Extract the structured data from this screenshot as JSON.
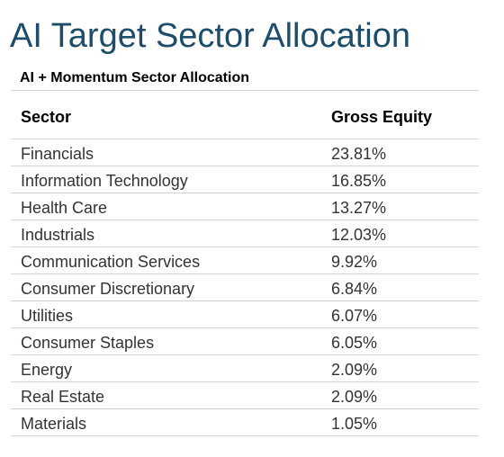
{
  "title": "AI Target Sector Allocation",
  "subtitle": "AI + Momentum Sector Allocation",
  "table": {
    "headers": {
      "sector": "Sector",
      "gross_equity": "Gross Equity"
    },
    "rows": [
      {
        "sector": "Financials",
        "gross_equity": "23.81%"
      },
      {
        "sector": "Information Technology",
        "gross_equity": "16.85%"
      },
      {
        "sector": "Health Care",
        "gross_equity": "13.27%"
      },
      {
        "sector": "Industrials",
        "gross_equity": "12.03%"
      },
      {
        "sector": "Communication Services",
        "gross_equity": "9.92%"
      },
      {
        "sector": "Consumer Discretionary",
        "gross_equity": "6.84%"
      },
      {
        "sector": "Utilities",
        "gross_equity": "6.07%"
      },
      {
        "sector": "Consumer Staples",
        "gross_equity": "6.05%"
      },
      {
        "sector": "Energy",
        "gross_equity": "2.09%"
      },
      {
        "sector": "Real Estate",
        "gross_equity": "2.09%"
      },
      {
        "sector": "Materials",
        "gross_equity": "1.05%"
      }
    ]
  },
  "colors": {
    "title": "#1d4d6a",
    "rule": "#d4d4d4"
  }
}
